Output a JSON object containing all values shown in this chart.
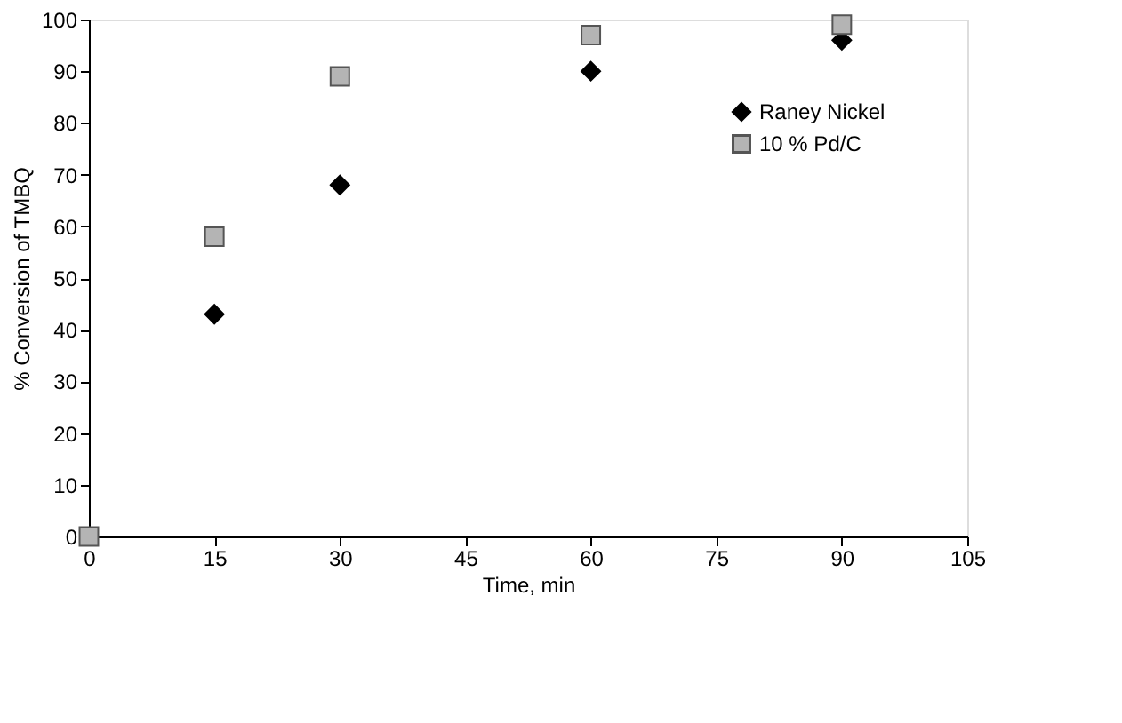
{
  "chart_data": {
    "type": "scatter",
    "xlabel": "Time, min",
    "ylabel": "% Conversion of TMBQ",
    "x": [
      0,
      15,
      30,
      60,
      90
    ],
    "series": [
      {
        "name": "Raney Nickel",
        "color": "#000000",
        "marker": "diamond",
        "values": [
          null,
          43,
          68,
          90,
          96
        ]
      },
      {
        "name": "10 % Pd/C",
        "color": "#b4b4b4",
        "marker": "square",
        "values": [
          0,
          58,
          89,
          97,
          99
        ]
      }
    ],
    "xlim": [
      0,
      105
    ],
    "xticks": [
      0,
      15,
      30,
      45,
      60,
      75,
      90,
      105
    ],
    "ylim": [
      0,
      100
    ],
    "yticks": [
      0,
      10,
      20,
      30,
      40,
      50,
      60,
      70,
      80,
      90,
      100
    ],
    "grid": false,
    "legend": "top right"
  }
}
